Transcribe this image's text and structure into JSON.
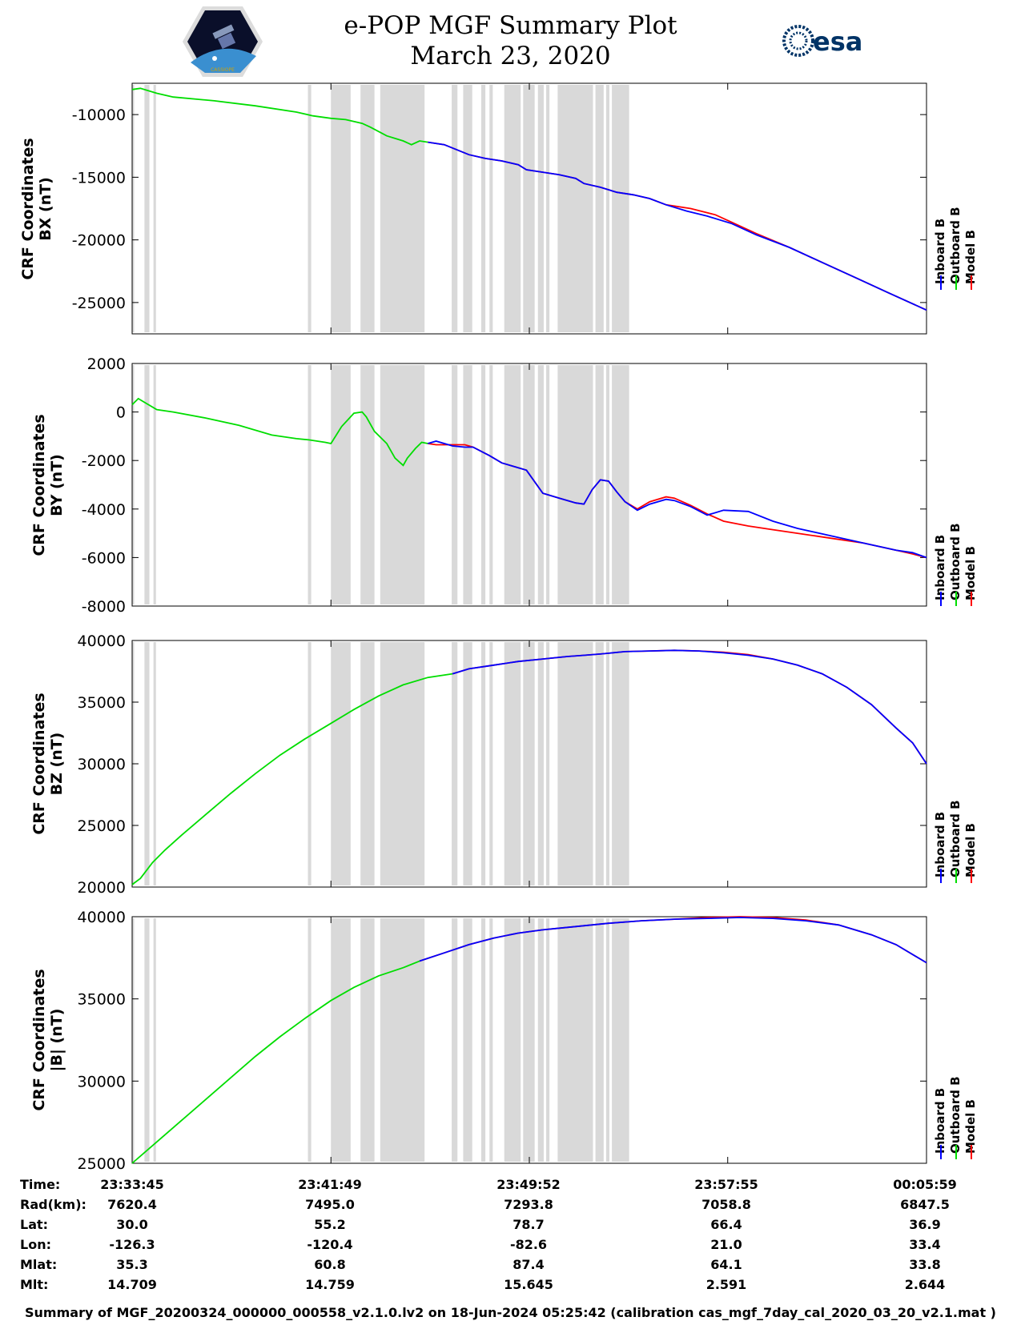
{
  "header": {
    "title_line1": "e-POP MGF Summary Plot",
    "title_line2": "March 23, 2020",
    "esa_logo_text": "esa",
    "mission_logo_text": "CASSIOPE"
  },
  "colors": {
    "inboard": "#0000ff",
    "outboard": "#00dd00",
    "model": "#ff0000",
    "gap": "#d9d9d9"
  },
  "legend": {
    "items": [
      "Inboard B",
      "Outboard B",
      "Model B"
    ]
  },
  "footer": {
    "rows": [
      {
        "label": "Time:",
        "values": [
          "23:33:45",
          "23:41:49",
          "23:49:52",
          "23:57:55",
          "00:05:59"
        ]
      },
      {
        "label": "Rad(km):",
        "values": [
          "7620.4",
          "7495.0",
          "7293.8",
          "7058.8",
          "6847.5"
        ]
      },
      {
        "label": "Lat:",
        "values": [
          "30.0",
          "55.2",
          "78.7",
          "66.4",
          "36.9"
        ]
      },
      {
        "label": "Lon:",
        "values": [
          "-126.3",
          "-120.4",
          "-82.6",
          "21.0",
          "33.4"
        ]
      },
      {
        "label": "Mlat:",
        "values": [
          "35.3",
          "60.8",
          "87.4",
          "64.1",
          "33.8"
        ]
      },
      {
        "label": "Mlt:",
        "values": [
          "14.709",
          "14.759",
          "15.645",
          "2.591",
          "2.644"
        ]
      }
    ],
    "note": "Summary of MGF_20200324_000000_000558_v2.1.0.lv2 on 18-Jun-2024 05:25:42 (calibration cas_mgf_7day_cal_2020_03_20_v2.1.mat )"
  },
  "chart_data": [
    {
      "type": "line",
      "ylabel": [
        "CRF Coordinates",
        "BX (nT)"
      ],
      "ylim": [
        -27500,
        -7500
      ],
      "yticks": [
        -10000,
        -15000,
        -20000,
        -25000
      ],
      "xlim": [
        0,
        1934
      ],
      "x_tick_positions": [
        0,
        484,
        967,
        1450,
        1934
      ],
      "gap_intervals_sec": [
        [
          0,
          5
        ],
        [
          30,
          42
        ],
        [
          52,
          58
        ],
        [
          428,
          436
        ],
        [
          484,
          532
        ],
        [
          556,
          590
        ],
        [
          604,
          712
        ],
        [
          778,
          792
        ],
        [
          806,
          828
        ],
        [
          850,
          860
        ],
        [
          870,
          878
        ],
        [
          906,
          946
        ],
        [
          952,
          980
        ],
        [
          988,
          1002
        ],
        [
          1008,
          1016
        ],
        [
          1036,
          1122
        ],
        [
          1128,
          1148
        ],
        [
          1154,
          1162
        ],
        [
          1168,
          1210
        ]
      ],
      "series": [
        {
          "name": "Outboard B",
          "x": [
            0,
            20,
            60,
            100,
            200,
            300,
            400,
            440,
            484,
            520,
            560,
            580,
            620,
            660,
            680,
            700,
            720
          ],
          "y": [
            -8000,
            -7900,
            -8300,
            -8600,
            -8900,
            -9300,
            -9800,
            -10100,
            -10300,
            -10400,
            -10700,
            -11000,
            -11700,
            -12100,
            -12400,
            -12100,
            -12200
          ]
        },
        {
          "name": "Inboard B",
          "x": [
            720,
            760,
            790,
            820,
            860,
            900,
            940,
            960,
            1000,
            1040,
            1080,
            1100,
            1140,
            1180,
            1220,
            1260,
            1300,
            1350,
            1400,
            1460,
            1520,
            1600,
            1680,
            1760,
            1840,
            1934
          ],
          "y": [
            -12200,
            -12400,
            -12800,
            -13200,
            -13500,
            -13700,
            -14000,
            -14400,
            -14600,
            -14800,
            -15100,
            -15500,
            -15800,
            -16200,
            -16400,
            -16700,
            -17200,
            -17700,
            -18100,
            -18700,
            -19600,
            -20600,
            -21800,
            -23000,
            -24200,
            -25600
          ]
        },
        {
          "name": "Model B",
          "x": [
            720,
            760,
            790,
            820,
            860,
            900,
            940,
            960,
            1000,
            1040,
            1080,
            1100,
            1140,
            1180,
            1220,
            1260,
            1300,
            1360,
            1420,
            1460,
            1520,
            1600,
            1680,
            1760,
            1840,
            1934
          ],
          "y": [
            -12200,
            -12400,
            -12800,
            -13200,
            -13500,
            -13700,
            -14000,
            -14400,
            -14600,
            -14800,
            -15100,
            -15500,
            -15800,
            -16200,
            -16400,
            -16700,
            -17200,
            -17500,
            -18000,
            -18600,
            -19500,
            -20600,
            -21800,
            -23000,
            -24200,
            -25600
          ]
        }
      ]
    },
    {
      "type": "line",
      "ylabel": [
        "CRF Coordinates",
        "BY (nT)"
      ],
      "ylim": [
        -8000,
        2000
      ],
      "yticks": [
        2000,
        0,
        -2000,
        -4000,
        -6000,
        -8000
      ],
      "xlim": [
        0,
        1934
      ],
      "x_tick_positions": [
        0,
        484,
        967,
        1450,
        1934
      ],
      "gap_intervals_sec": [
        [
          0,
          5
        ],
        [
          30,
          42
        ],
        [
          52,
          58
        ],
        [
          428,
          436
        ],
        [
          484,
          532
        ],
        [
          556,
          590
        ],
        [
          604,
          712
        ],
        [
          778,
          792
        ],
        [
          806,
          828
        ],
        [
          850,
          860
        ],
        [
          870,
          878
        ],
        [
          906,
          946
        ],
        [
          952,
          980
        ],
        [
          988,
          1002
        ],
        [
          1008,
          1016
        ],
        [
          1036,
          1122
        ],
        [
          1128,
          1148
        ],
        [
          1154,
          1162
        ],
        [
          1168,
          1210
        ]
      ],
      "series": [
        {
          "name": "Outboard B",
          "x": [
            0,
            15,
            30,
            60,
            100,
            180,
            260,
            340,
            400,
            430,
            470,
            484,
            510,
            540,
            560,
            570,
            590,
            620,
            640,
            660,
            670,
            690,
            705,
            720
          ],
          "y": [
            300,
            550,
            400,
            100,
            0,
            -250,
            -550,
            -950,
            -1100,
            -1150,
            -1250,
            -1300,
            -600,
            -50,
            0,
            -200,
            -800,
            -1300,
            -1900,
            -2200,
            -1900,
            -1500,
            -1250,
            -1300
          ]
        },
        {
          "name": "Inboard B",
          "x": [
            720,
            740,
            780,
            810,
            830,
            870,
            900,
            940,
            960,
            1000,
            1040,
            1060,
            1080,
            1100,
            1120,
            1140,
            1160,
            1180,
            1200,
            1230,
            1260,
            1300,
            1320,
            1360,
            1400,
            1440,
            1500,
            1560,
            1620,
            1700,
            1780,
            1860,
            1900,
            1934
          ],
          "y": [
            -1300,
            -1200,
            -1400,
            -1450,
            -1450,
            -1800,
            -2100,
            -2300,
            -2400,
            -3350,
            -3550,
            -3650,
            -3750,
            -3800,
            -3200,
            -2800,
            -2850,
            -3300,
            -3700,
            -4050,
            -3800,
            -3600,
            -3650,
            -3900,
            -4250,
            -4050,
            -4100,
            -4500,
            -4800,
            -5100,
            -5400,
            -5700,
            -5800,
            -6000
          ]
        },
        {
          "name": "Model B",
          "x": [
            720,
            740,
            780,
            810,
            830,
            870,
            900,
            940,
            960,
            1000,
            1040,
            1060,
            1080,
            1100,
            1120,
            1140,
            1160,
            1180,
            1200,
            1230,
            1260,
            1300,
            1320,
            1360,
            1400,
            1440,
            1500,
            1560,
            1620,
            1700,
            1780,
            1860,
            1900,
            1934
          ],
          "y": [
            -1300,
            -1350,
            -1350,
            -1350,
            -1450,
            -1800,
            -2100,
            -2300,
            -2400,
            -3350,
            -3550,
            -3650,
            -3750,
            -3800,
            -3200,
            -2800,
            -2850,
            -3300,
            -3700,
            -4000,
            -3700,
            -3500,
            -3550,
            -3850,
            -4200,
            -4500,
            -4700,
            -4850,
            -5000,
            -5200,
            -5400,
            -5700,
            -5850,
            -6000
          ]
        }
      ]
    },
    {
      "type": "line",
      "ylabel": [
        "CRF Coordinates",
        "BZ (nT)"
      ],
      "ylim": [
        20000,
        40000
      ],
      "yticks": [
        40000,
        35000,
        30000,
        25000,
        20000
      ],
      "xlim": [
        0,
        1934
      ],
      "x_tick_positions": [
        0,
        484,
        967,
        1450,
        1934
      ],
      "gap_intervals_sec": [
        [
          0,
          5
        ],
        [
          30,
          42
        ],
        [
          52,
          58
        ],
        [
          428,
          436
        ],
        [
          484,
          532
        ],
        [
          556,
          590
        ],
        [
          604,
          712
        ],
        [
          778,
          792
        ],
        [
          806,
          828
        ],
        [
          850,
          860
        ],
        [
          870,
          878
        ],
        [
          906,
          946
        ],
        [
          952,
          980
        ],
        [
          988,
          1002
        ],
        [
          1008,
          1016
        ],
        [
          1036,
          1122
        ],
        [
          1128,
          1148
        ],
        [
          1154,
          1162
        ],
        [
          1168,
          1210
        ]
      ],
      "series": [
        {
          "name": "Outboard B",
          "x": [
            0,
            20,
            50,
            80,
            120,
            180,
            240,
            300,
            360,
            420,
            470,
            540,
            600,
            660,
            720,
            780
          ],
          "y": [
            20200,
            20700,
            22000,
            23000,
            24200,
            25900,
            27600,
            29200,
            30700,
            32000,
            33000,
            34400,
            35500,
            36400,
            37000,
            37300
          ]
        },
        {
          "name": "Inboard B",
          "x": [
            780,
            820,
            880,
            940,
            1000,
            1060,
            1100,
            1140,
            1200,
            1260,
            1320,
            1380,
            1440,
            1500,
            1560,
            1620,
            1680,
            1740,
            1800,
            1860,
            1900,
            1934
          ],
          "y": [
            37300,
            37700,
            38000,
            38300,
            38500,
            38700,
            38800,
            38900,
            39100,
            39150,
            39200,
            39150,
            39000,
            38800,
            38500,
            38000,
            37300,
            36200,
            34800,
            32900,
            31700,
            30000
          ]
        },
        {
          "name": "Model B",
          "x": [
            780,
            820,
            880,
            940,
            1000,
            1060,
            1100,
            1140,
            1200,
            1260,
            1320,
            1380,
            1440,
            1500,
            1560,
            1620,
            1680,
            1740,
            1800,
            1860,
            1900,
            1934
          ],
          "y": [
            37300,
            37700,
            38000,
            38300,
            38500,
            38700,
            38800,
            38900,
            39100,
            39150,
            39200,
            39150,
            39050,
            38850,
            38500,
            38000,
            37300,
            36200,
            34800,
            32900,
            31700,
            30000
          ]
        }
      ]
    },
    {
      "type": "line",
      "ylabel": [
        "CRF Coordinates",
        "|B| (nT)"
      ],
      "ylim": [
        25000,
        40000
      ],
      "yticks": [
        40000,
        35000,
        30000,
        25000
      ],
      "xlim": [
        0,
        1934
      ],
      "x_tick_positions": [
        0,
        484,
        967,
        1450,
        1934
      ],
      "gap_intervals_sec": [
        [
          0,
          5
        ],
        [
          30,
          42
        ],
        [
          52,
          58
        ],
        [
          428,
          436
        ],
        [
          484,
          532
        ],
        [
          556,
          590
        ],
        [
          604,
          712
        ],
        [
          778,
          792
        ],
        [
          806,
          828
        ],
        [
          850,
          860
        ],
        [
          870,
          878
        ],
        [
          906,
          946
        ],
        [
          952,
          980
        ],
        [
          988,
          1002
        ],
        [
          1008,
          1016
        ],
        [
          1036,
          1122
        ],
        [
          1128,
          1148
        ],
        [
          1154,
          1162
        ],
        [
          1168,
          1210
        ]
      ],
      "series": [
        {
          "name": "Outboard B",
          "x": [
            0,
            60,
            120,
            180,
            240,
            300,
            360,
            420,
            484,
            540,
            600,
            660,
            700
          ],
          "y": [
            25000,
            26300,
            27600,
            28900,
            30200,
            31500,
            32700,
            33800,
            34900,
            35700,
            36400,
            36900,
            37300
          ]
        },
        {
          "name": "Inboard B",
          "x": [
            700,
            760,
            820,
            880,
            940,
            1000,
            1080,
            1160,
            1240,
            1320,
            1400,
            1480,
            1560,
            1640,
            1720,
            1800,
            1860,
            1934
          ],
          "y": [
            37300,
            37800,
            38300,
            38700,
            39000,
            39200,
            39400,
            39600,
            39750,
            39850,
            39900,
            39950,
            39900,
            39750,
            39500,
            38900,
            38300,
            37200
          ]
        },
        {
          "name": "Model B",
          "x": [
            700,
            760,
            820,
            880,
            940,
            1000,
            1080,
            1160,
            1240,
            1320,
            1400,
            1480,
            1560,
            1640,
            1720,
            1800,
            1860,
            1934
          ],
          "y": [
            37300,
            37800,
            38300,
            38700,
            39000,
            39200,
            39400,
            39600,
            39750,
            39850,
            39950,
            40000,
            39950,
            39800,
            39500,
            38900,
            38300,
            37200
          ]
        }
      ]
    }
  ]
}
